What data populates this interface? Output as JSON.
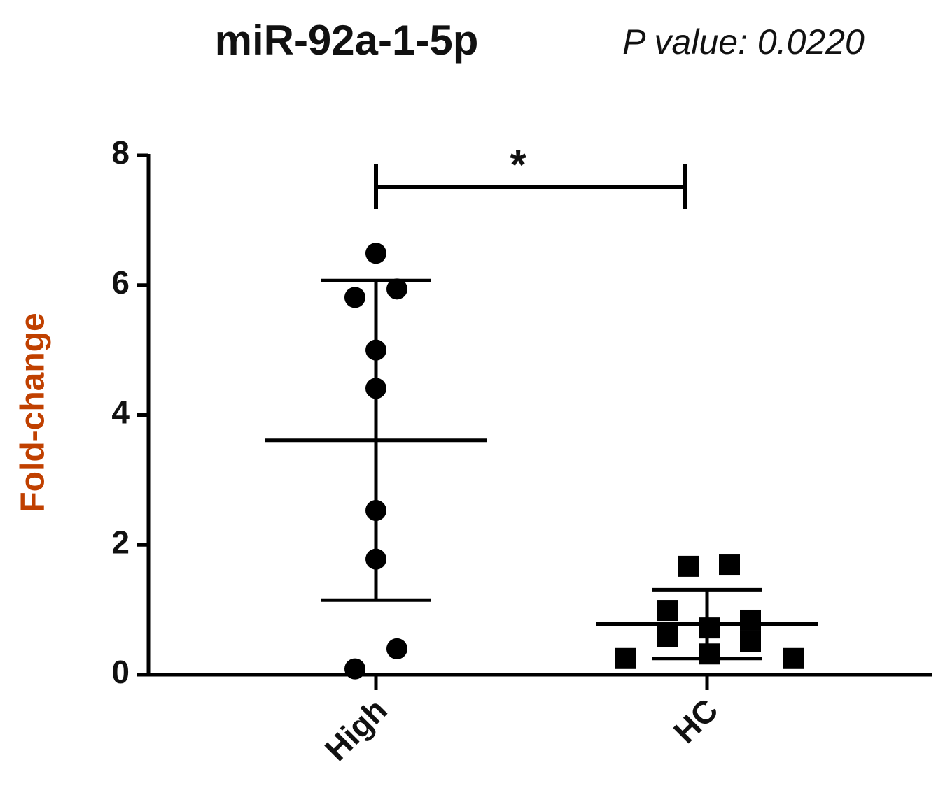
{
  "chart_data": {
    "type": "strip",
    "title": "miR-92a-1-5p",
    "subtitle": "P value: 0.0220",
    "y_label": "Fold-change",
    "annotation": "*",
    "categories": [
      "High",
      "HC"
    ],
    "markers": [
      "circle",
      "square"
    ],
    "values": [
      [
        6.49,
        5.81,
        5.94,
        5.0,
        4.41,
        2.53,
        1.78,
        0.4,
        0.09
      ],
      [
        0.25,
        1.67,
        1.69,
        0.99,
        0.59,
        0.72,
        0.32,
        0.84,
        0.51,
        0.25
      ]
    ],
    "mean": [
      3.61,
      0.78
    ],
    "sd": [
      2.46,
      0.53
    ],
    "color": "#000000",
    "label_color": "#c04000",
    "ylim": [
      0,
      8
    ],
    "yticks": [
      0,
      2,
      4,
      6,
      8
    ]
  }
}
